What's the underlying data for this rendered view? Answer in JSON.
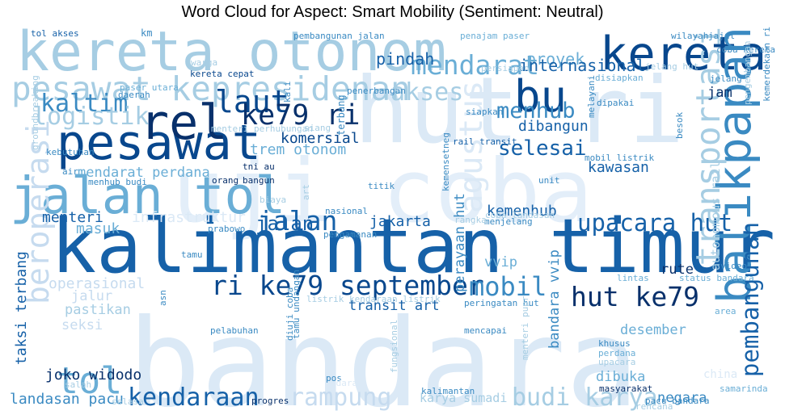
{
  "title": "Word Cloud for Aspect: Smart Mobility (Sentiment: Neutral)",
  "chart_data": {
    "type": "wordcloud",
    "title": "Word Cloud for Aspect: Smart Mobility (Sentiment: Neutral)",
    "colormap": "Blues",
    "background": "#ffffff",
    "words": [
      {
        "text": "bandara",
        "weight": 1.0,
        "color": "#dbe9f6",
        "rotate": 0
      },
      {
        "text": "hut ri",
        "weight": 0.75,
        "color": "#dbe9f6",
        "rotate": 0
      },
      {
        "text": "uji coba",
        "weight": 0.72,
        "color": "#e3eef9",
        "rotate": 0
      },
      {
        "text": "kalimantan timur",
        "weight": 0.62,
        "color": "#1661a8",
        "rotate": 0
      },
      {
        "text": "kereta otonom",
        "weight": 0.45,
        "color": "#a6cde3",
        "rotate": 0
      },
      {
        "text": "jalan tol",
        "weight": 0.42,
        "color": "#6aaed6",
        "rotate": 0
      },
      {
        "text": "pesawat",
        "weight": 0.4,
        "color": "#08478d",
        "rotate": 0
      },
      {
        "text": "rel",
        "weight": 0.4,
        "color": "#08306b",
        "rotate": 0
      },
      {
        "text": "kereta",
        "weight": 0.38,
        "color": "#08478d",
        "rotate": 0
      },
      {
        "text": "balikpapan",
        "weight": 0.38,
        "color": "#3a8ac2",
        "rotate": -90
      },
      {
        "text": "bu",
        "weight": 0.36,
        "color": "#08478d",
        "rotate": 0
      },
      {
        "text": "tol",
        "weight": 0.3,
        "color": "#6aaed6",
        "rotate": 0
      },
      {
        "text": "pesawat kepresidenan",
        "weight": 0.27,
        "color": "#a6cde3",
        "rotate": 0
      },
      {
        "text": "transportasi",
        "weight": 0.27,
        "color": "#a6cde3",
        "rotate": -90
      },
      {
        "text": "agustus",
        "weight": 0.26,
        "color": "#dbe9f6",
        "rotate": -90
      },
      {
        "text": "beroperasi",
        "weight": 0.25,
        "color": "#c6dbef",
        "rotate": -90
      },
      {
        "text": "laut",
        "weight": 0.25,
        "color": "#08478d",
        "rotate": 0
      },
      {
        "text": "ke79 ri",
        "weight": 0.23,
        "color": "#08306b",
        "rotate": 0
      },
      {
        "text": "mendarat",
        "weight": 0.22,
        "color": "#6aaed6",
        "rotate": 0
      },
      {
        "text": "hut ke79",
        "weight": 0.22,
        "color": "#08306b",
        "rotate": 0
      },
      {
        "text": "ri ke79 september",
        "weight": 0.22,
        "color": "#08478d",
        "rotate": 0
      },
      {
        "text": "jalan",
        "weight": 0.22,
        "color": "#1661a8",
        "rotate": 0
      },
      {
        "text": "mobil",
        "weight": 0.21,
        "color": "#3a8ac2",
        "rotate": 0
      },
      {
        "text": "kaltim",
        "weight": 0.2,
        "color": "#3a8ac2",
        "rotate": 0
      },
      {
        "text": "logistik",
        "weight": 0.2,
        "color": "#a6cde3",
        "rotate": 0
      },
      {
        "text": "akses",
        "weight": 0.2,
        "color": "#a6cde3",
        "rotate": 0
      },
      {
        "text": "kendaraan",
        "weight": 0.2,
        "color": "#1661a8",
        "rotate": 0
      },
      {
        "text": "rampung",
        "weight": 0.2,
        "color": "#c6dbef",
        "rotate": 0
      },
      {
        "text": "budi karya",
        "weight": 0.2,
        "color": "#a6cde3",
        "rotate": 0
      },
      {
        "text": "upacara hut",
        "weight": 0.19,
        "color": "#1661a8",
        "rotate": 0
      },
      {
        "text": "pembangunan",
        "weight": 0.19,
        "color": "#1661a8",
        "rotate": -90
      },
      {
        "text": "menhub",
        "weight": 0.18,
        "color": "#3a8ac2",
        "rotate": 0
      },
      {
        "text": "selesai",
        "weight": 0.17,
        "color": "#1661a8",
        "rotate": 0
      },
      {
        "text": "jalan",
        "weight": 0.16,
        "color": "#1661a8",
        "rotate": 0
      },
      {
        "text": "pindah",
        "weight": 0.13,
        "color": "#1661a8",
        "rotate": 0
      },
      {
        "text": "proyek",
        "weight": 0.13,
        "color": "#6aaed6",
        "rotate": 0
      },
      {
        "text": "internasional",
        "weight": 0.13,
        "color": "#1661a8",
        "rotate": 0
      },
      {
        "text": "jakarta",
        "weight": 0.12,
        "color": "#1661a8",
        "rotate": 0
      },
      {
        "text": "kemenhub",
        "weight": 0.12,
        "color": "#1661a8",
        "rotate": 0
      },
      {
        "text": "kawasan",
        "weight": 0.12,
        "color": "#1661a8",
        "rotate": 0
      },
      {
        "text": "dibangun",
        "weight": 0.12,
        "color": "#1661a8",
        "rotate": 0
      },
      {
        "text": "trem otonom",
        "weight": 0.12,
        "color": "#6aaed6",
        "rotate": 0
      },
      {
        "text": "mendarat perdana",
        "weight": 0.11,
        "color": "#6aaed6",
        "rotate": 0
      },
      {
        "text": "komersial",
        "weight": 0.12,
        "color": "#08478d",
        "rotate": 0
      },
      {
        "text": "infrastruktur",
        "weight": 0.12,
        "color": "#dbe9f6",
        "rotate": 0
      },
      {
        "text": "menteri",
        "weight": 0.12,
        "color": "#1661a8",
        "rotate": 0
      },
      {
        "text": "masuk",
        "weight": 0.12,
        "color": "#6aaed6",
        "rotate": 0
      },
      {
        "text": "operasional",
        "weight": 0.12,
        "color": "#c6dbef",
        "rotate": 0
      },
      {
        "text": "pastikan",
        "weight": 0.11,
        "color": "#a6cde3",
        "rotate": 0
      },
      {
        "text": "seksi",
        "weight": 0.11,
        "color": "#c6dbef",
        "rotate": 0
      },
      {
        "text": "jalur",
        "weight": 0.11,
        "color": "#c6dbef",
        "rotate": 0
      },
      {
        "text": "joko widodo",
        "weight": 0.12,
        "color": "#08306b",
        "rotate": 0
      },
      {
        "text": "landasan pacu",
        "weight": 0.12,
        "color": "#3a8ac2",
        "rotate": 0
      },
      {
        "text": "taksi terbang",
        "weight": 0.12,
        "color": "#1661a8",
        "rotate": -90
      },
      {
        "text": "transit art",
        "weight": 0.11,
        "color": "#1661a8",
        "rotate": 0
      },
      {
        "text": "perayaan hut",
        "weight": 0.11,
        "color": "#3a8ac2",
        "rotate": -90
      },
      {
        "text": "bandara vvip",
        "weight": 0.11,
        "color": "#3a8ac2",
        "rotate": -90
      },
      {
        "text": "vvip",
        "weight": 0.11,
        "color": "#6aaed6",
        "rotate": 0
      },
      {
        "text": "rute",
        "weight": 0.11,
        "color": "#08306b",
        "rotate": 0
      },
      {
        "text": "jam",
        "weight": 0.11,
        "color": "#08306b",
        "rotate": 0
      },
      {
        "text": "desember",
        "weight": 0.11,
        "color": "#6aaed6",
        "rotate": 0
      },
      {
        "text": "dibuka",
        "weight": 0.11,
        "color": "#6aaed6",
        "rotate": 0
      },
      {
        "text": "negara",
        "weight": 0.11,
        "color": "#3a8ac2",
        "rotate": 0
      },
      {
        "text": "karya sumadi",
        "weight": 0.1,
        "color": "#a6cde3",
        "rotate": 0
      },
      {
        "text": "autonomous rail",
        "weight": 0.1,
        "color": "#a6cde3",
        "rotate": -90
      },
      {
        "text": "terbang",
        "weight": 0.08,
        "color": "#3a8ac2",
        "rotate": -90
      },
      {
        "text": "tni au",
        "weight": 0.07,
        "color": "#08306b",
        "rotate": 0
      },
      {
        "text": "bangun",
        "weight": 0.07,
        "color": "#08306b",
        "rotate": 0
      },
      {
        "text": "orang",
        "weight": 0.07,
        "color": "#08306b",
        "rotate": 0
      },
      {
        "text": "air",
        "weight": 0.07,
        "color": "#3a8ac2",
        "rotate": 0
      },
      {
        "text": "menhub budi",
        "weight": 0.07,
        "color": "#3a8ac2",
        "rotate": 0
      },
      {
        "text": "rail transit",
        "weight": 0.07,
        "color": "#1661a8",
        "rotate": 0
      },
      {
        "text": "mobil listrik",
        "weight": 0.07,
        "color": "#3a8ac2",
        "rotate": 0
      },
      {
        "text": "unit",
        "weight": 0.07,
        "color": "#3a8ac2",
        "rotate": 0
      },
      {
        "text": "titik",
        "weight": 0.07,
        "color": "#3a8ac2",
        "rotate": 0
      },
      {
        "text": "nasional",
        "weight": 0.07,
        "color": "#3a8ac2",
        "rotate": 0
      },
      {
        "text": "prabowo",
        "weight": 0.07,
        "color": "#3a8ac2",
        "rotate": 0
      },
      {
        "text": "pengamanan",
        "weight": 0.07,
        "color": "#3a8ac2",
        "rotate": 0
      },
      {
        "text": "menjelang",
        "weight": 0.07,
        "color": "#3a8ac2",
        "rotate": 0
      },
      {
        "text": "coba landasan",
        "weight": 0.07,
        "color": "#a6cde3",
        "rotate": 0
      },
      {
        "text": "tamu",
        "weight": 0.07,
        "color": "#3a8ac2",
        "rotate": 0
      },
      {
        "text": "biaya",
        "weight": 0.07,
        "color": "#a6cde3",
        "rotate": 0
      },
      {
        "text": "art",
        "weight": 0.07,
        "color": "#a6cde3",
        "rotate": -90
      },
      {
        "text": "listrik kendaraan listrik",
        "weight": 0.07,
        "color": "#a6cde3",
        "rotate": 0
      },
      {
        "text": "asn",
        "weight": 0.07,
        "color": "#3a8ac2",
        "rotate": -90
      },
      {
        "text": "peringatan hut",
        "weight": 0.07,
        "color": "#3a8ac2",
        "rotate": 0
      },
      {
        "text": "pelabuhan",
        "weight": 0.07,
        "color": "#3a8ac2",
        "rotate": 0
      },
      {
        "text": "diuji coba",
        "weight": 0.07,
        "color": "#3a8ac2",
        "rotate": -90
      },
      {
        "text": "tamu undangan",
        "weight": 0.07,
        "color": "#3a8ac2",
        "rotate": -90
      },
      {
        "text": "mencapai",
        "weight": 0.07,
        "color": "#3a8ac2",
        "rotate": 0
      },
      {
        "text": "khusus",
        "weight": 0.07,
        "color": "#3a8ac2",
        "rotate": 0
      },
      {
        "text": "perdana",
        "weight": 0.07,
        "color": "#6aaed6",
        "rotate": 0
      },
      {
        "text": "upacara",
        "weight": 0.07,
        "color": "#a6cde3",
        "rotate": 0
      },
      {
        "text": "menteri pupr",
        "weight": 0.07,
        "color": "#a6cde3",
        "rotate": -90
      },
      {
        "text": "fungsional",
        "weight": 0.07,
        "color": "#a6cde3",
        "rotate": -90
      },
      {
        "text": "pos",
        "weight": 0.07,
        "color": "#3a8ac2",
        "rotate": 0
      },
      {
        "text": "udara",
        "weight": 0.07,
        "color": "#dbe9f6",
        "rotate": 0
      },
      {
        "text": "kalimantan",
        "weight": 0.07,
        "color": "#3a8ac2",
        "rotate": 0
      },
      {
        "text": "masyarakat",
        "weight": 0.07,
        "color": "#08306b",
        "rotate": 0
      },
      {
        "text": "progres",
        "weight": 0.07,
        "color": "#08306b",
        "rotate": 0
      },
      {
        "text": "selasa",
        "weight": 0.07,
        "color": "#a6cde3",
        "rotate": 0
      },
      {
        "text": "salah",
        "weight": 0.07,
        "color": "#a6cde3",
        "rotate": 0
      },
      {
        "text": "pacu bandara",
        "weight": 0.07,
        "color": "#3a8ac2",
        "rotate": 0
      },
      {
        "text": "rencana",
        "weight": 0.07,
        "color": "#a6cde3",
        "rotate": 0
      },
      {
        "text": "samarinda",
        "weight": 0.07,
        "color": "#6aaed6",
        "rotate": 0
      },
      {
        "text": "area",
        "weight": 0.07,
        "color": "#6aaed6",
        "rotate": 0
      },
      {
        "text": "china",
        "weight": 0.09,
        "color": "#dbe9f6",
        "rotate": 0
      },
      {
        "text": "video",
        "weight": 0.07,
        "color": "#3a8ac2",
        "rotate": 0
      },
      {
        "text": "status bandara",
        "weight": 0.07,
        "color": "#6aaed6",
        "rotate": 0
      },
      {
        "text": "lintas",
        "weight": 0.07,
        "color": "#6aaed6",
        "rotate": 0
      },
      {
        "text": "siang",
        "weight": 0.07,
        "color": "#a6cde3",
        "rotate": 0
      },
      {
        "text": "menteri perhubungan",
        "weight": 0.07,
        "color": "#a6cde3",
        "rotate": 0
      },
      {
        "text": "groundbreaking",
        "weight": 0.07,
        "color": "#a6cde3",
        "rotate": -90
      },
      {
        "text": "kebutuhan",
        "weight": 0.07,
        "color": "#3a8ac2",
        "rotate": 0
      },
      {
        "text": "paser utara",
        "weight": 0.07,
        "color": "#6aaed6",
        "rotate": 0
      },
      {
        "text": "daerah",
        "weight": 0.07,
        "color": "#3a8ac2",
        "rotate": 0
      },
      {
        "text": "penerbangan",
        "weight": 0.07,
        "color": "#3a8ac2",
        "rotate": 0
      },
      {
        "text": "kali",
        "weight": 0.07,
        "color": "#3a8ac2",
        "rotate": -90
      },
      {
        "text": "siapkan",
        "weight": 0.07,
        "color": "#3a8ac2",
        "rotate": 0
      },
      {
        "text": "persiapan",
        "weight": 0.07,
        "color": "#a6cde3",
        "rotate": 0
      },
      {
        "text": "penajam paser",
        "weight": 0.07,
        "color": "#6aaed6",
        "rotate": 0
      },
      {
        "text": "pembangunan jalan",
        "weight": 0.07,
        "color": "#3a8ac2",
        "rotate": 0
      },
      {
        "text": "tol akses",
        "weight": 0.07,
        "color": "#1661a8",
        "rotate": 0
      },
      {
        "text": "km",
        "weight": 0.08,
        "color": "#3a8ac2",
        "rotate": 0
      },
      {
        "text": "warga",
        "weight": 0.07,
        "color": "#a6cde3",
        "rotate": 0
      },
      {
        "text": "kereta cepat",
        "weight": 0.07,
        "color": "#08478d",
        "rotate": 0
      },
      {
        "text": "wilayah",
        "weight": 0.07,
        "color": "#3a8ac2",
        "rotate": 0
      },
      {
        "text": "jajal",
        "weight": 0.07,
        "color": "#3a8ac2",
        "rotate": 0
      },
      {
        "text": "coba kereta",
        "weight": 0.07,
        "color": "#3a8ac2",
        "rotate": 0
      },
      {
        "text": "jelang hut",
        "weight": 0.07,
        "color": "#a6cde3",
        "rotate": 0
      },
      {
        "text": "disiapkan",
        "weight": 0.07,
        "color": "#6aaed6",
        "rotate": 0
      },
      {
        "text": "jelang",
        "weight": 0.07,
        "color": "#3a8ac2",
        "rotate": 0
      },
      {
        "text": "dipakai",
        "weight": 0.07,
        "color": "#3a8ac2",
        "rotate": 0
      },
      {
        "text": "melayani",
        "weight": 0.07,
        "color": "#3a8ac2",
        "rotate": -90
      },
      {
        "text": "besok",
        "weight": 0.07,
        "color": "#3a8ac2",
        "rotate": -90
      },
      {
        "text": "pengembangan",
        "weight": 0.07,
        "color": "#a6cde3",
        "rotate": -90
      },
      {
        "text": "kemerdekaan ri",
        "weight": 0.07,
        "color": "#3a8ac2",
        "rotate": -90
      },
      {
        "text": "kemensetneg",
        "weight": 0.07,
        "color": "#3a8ac2",
        "rotate": -90
      },
      {
        "text": "rangka",
        "weight": 0.07,
        "color": "#a6cde3",
        "rotate": 0
      }
    ]
  }
}
